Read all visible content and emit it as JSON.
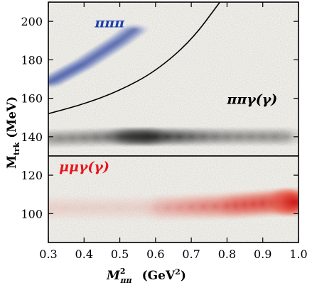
{
  "chart_data": {
    "type": "scatter",
    "xlabel": "M²ππ (GeV²)",
    "ylabel": "Mtrk (MeV)",
    "xlim": [
      0.3,
      1.0
    ],
    "ylim": [
      85,
      210
    ],
    "x_ticks": [
      "0.3",
      "0.4",
      "0.5",
      "0.6",
      "0.7",
      "0.8",
      "0.9",
      "1.0"
    ],
    "y_ticks": [
      "100",
      "120",
      "140",
      "160",
      "180",
      "200"
    ],
    "grid": false,
    "separator_line": {
      "y": 130
    },
    "cut_curve": [
      [
        0.3,
        152
      ],
      [
        0.4,
        157
      ],
      [
        0.5,
        164
      ],
      [
        0.6,
        174
      ],
      [
        0.7,
        190
      ],
      [
        0.78,
        210
      ]
    ],
    "annotations": [
      {
        "text": "πππ",
        "x": 0.43,
        "y": 197,
        "color": "#1f3fae"
      },
      {
        "text": "ππγ(γ)",
        "x": 0.8,
        "y": 157,
        "color": "#000000"
      },
      {
        "text": "μμγ(γ)",
        "x": 0.33,
        "y": 122,
        "color": "#e8141c"
      }
    ],
    "series": [
      {
        "name": "πππ",
        "color": "#2a45a0",
        "band": [
          [
            0.3,
            168
          ],
          [
            0.35,
            173
          ],
          [
            0.4,
            178
          ],
          [
            0.45,
            184
          ],
          [
            0.5,
            190
          ],
          [
            0.55,
            197
          ]
        ]
      },
      {
        "name": "ππγ(γ)",
        "color": "#1c1c1c",
        "band": [
          [
            0.3,
            139
          ],
          [
            0.5,
            140
          ],
          [
            0.6,
            140
          ],
          [
            0.8,
            140
          ],
          [
            1.0,
            140
          ]
        ]
      },
      {
        "name": "μμγ(γ)",
        "color": "#d8261c",
        "band": [
          [
            0.3,
            103
          ],
          [
            0.6,
            103
          ],
          [
            0.8,
            104
          ],
          [
            0.95,
            106
          ],
          [
            1.0,
            106
          ]
        ]
      }
    ]
  }
}
